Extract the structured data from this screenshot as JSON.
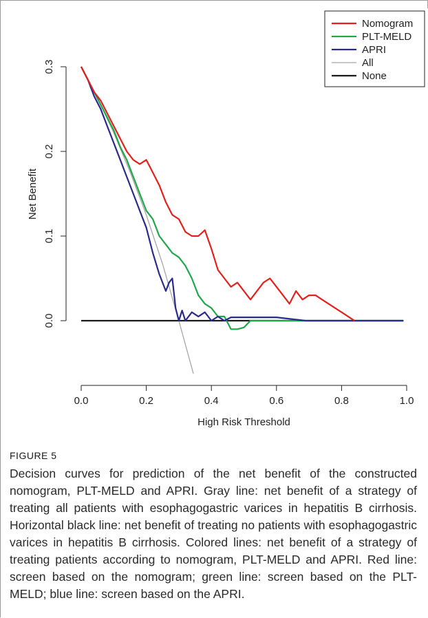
{
  "figure": {
    "label": "FIGURE 5",
    "caption": "Decision curves for prediction of the net benefit of the constructed nomogram, PLT-MELD and APRI. Gray line: net benefit of a strategy of treating all patients with esophagogastric varices in hepatitis B cirrhosis. Horizontal black line: net benefit of treating no patients with esophagogastric varices in hepatitis B cirrhosis. Colored lines: net benefit of a strategy of treating patients according to nomogram, PLT-MELD and APRI. Red line: screen based on the nomogram; green line: screen based on the PLT-MELD; blue line: screen based on the APRI."
  },
  "chart_data": {
    "type": "line",
    "title": "",
    "xlabel": "High Risk Threshold",
    "ylabel": "Net Benefit",
    "xlim": [
      0.0,
      1.0
    ],
    "ylim": [
      -0.065,
      0.3
    ],
    "xticks": [
      "0.0",
      "0.2",
      "0.4",
      "0.6",
      "0.8",
      "1.0"
    ],
    "yticks": [
      "0.0",
      "0.1",
      "0.2",
      "0.3"
    ],
    "grid": false,
    "legend_position": "top-right",
    "series": [
      {
        "name": "Nomogram",
        "color": "#e3201c",
        "x": [
          0.0,
          0.02,
          0.04,
          0.06,
          0.08,
          0.1,
          0.12,
          0.14,
          0.16,
          0.18,
          0.2,
          0.22,
          0.24,
          0.26,
          0.28,
          0.3,
          0.32,
          0.34,
          0.36,
          0.38,
          0.4,
          0.42,
          0.44,
          0.46,
          0.48,
          0.5,
          0.52,
          0.54,
          0.56,
          0.58,
          0.6,
          0.62,
          0.64,
          0.66,
          0.68,
          0.7,
          0.72,
          0.74,
          0.76,
          0.78,
          0.8,
          0.82,
          0.84
        ],
        "y": [
          0.3,
          0.285,
          0.27,
          0.26,
          0.245,
          0.23,
          0.215,
          0.2,
          0.19,
          0.185,
          0.19,
          0.175,
          0.16,
          0.14,
          0.125,
          0.12,
          0.105,
          0.1,
          0.1,
          0.107,
          0.085,
          0.06,
          0.05,
          0.04,
          0.045,
          0.035,
          0.025,
          0.035,
          0.045,
          0.05,
          0.04,
          0.03,
          0.02,
          0.035,
          0.025,
          0.03,
          0.03,
          0.025,
          0.02,
          0.015,
          0.01,
          0.005,
          0.0
        ]
      },
      {
        "name": "PLT-MELD",
        "color": "#1fa84a",
        "x": [
          0.0,
          0.02,
          0.04,
          0.06,
          0.08,
          0.1,
          0.12,
          0.14,
          0.16,
          0.18,
          0.2,
          0.22,
          0.24,
          0.26,
          0.28,
          0.3,
          0.32,
          0.34,
          0.36,
          0.38,
          0.4,
          0.42,
          0.44,
          0.46,
          0.48,
          0.5,
          0.52,
          0.6,
          0.69,
          0.99
        ],
        "y": [
          0.3,
          0.285,
          0.27,
          0.255,
          0.24,
          0.225,
          0.205,
          0.19,
          0.17,
          0.15,
          0.13,
          0.12,
          0.1,
          0.09,
          0.08,
          0.075,
          0.065,
          0.05,
          0.03,
          0.02,
          0.015,
          0.005,
          0.005,
          -0.01,
          -0.01,
          -0.008,
          0.0,
          0.0,
          0.0,
          0.0
        ]
      },
      {
        "name": "APRI",
        "color": "#2a2a8c",
        "x": [
          0.0,
          0.02,
          0.04,
          0.06,
          0.08,
          0.1,
          0.12,
          0.14,
          0.16,
          0.18,
          0.2,
          0.22,
          0.24,
          0.26,
          0.27,
          0.28,
          0.29,
          0.3,
          0.31,
          0.32,
          0.34,
          0.36,
          0.38,
          0.4,
          0.42,
          0.44,
          0.46,
          0.6,
          0.69,
          0.99
        ],
        "y": [
          0.3,
          0.285,
          0.265,
          0.25,
          0.23,
          0.21,
          0.19,
          0.17,
          0.15,
          0.13,
          0.11,
          0.08,
          0.055,
          0.035,
          0.045,
          0.05,
          0.015,
          0.0,
          0.012,
          0.0,
          0.01,
          0.005,
          0.01,
          0.0,
          0.005,
          0.0,
          0.004,
          0.004,
          0.0,
          0.0
        ]
      },
      {
        "name": "All",
        "color": "#a6a6a6",
        "x": [
          0.0,
          0.05,
          0.1,
          0.15,
          0.2,
          0.25,
          0.3,
          0.3465
        ],
        "y": [
          0.3,
          0.263,
          0.222,
          0.176,
          0.125,
          0.067,
          0.0,
          -0.065
        ]
      },
      {
        "name": "None",
        "color": "#1a1a1a",
        "x": [
          0.0,
          0.99
        ],
        "y": [
          0.0,
          0.0
        ]
      }
    ]
  }
}
